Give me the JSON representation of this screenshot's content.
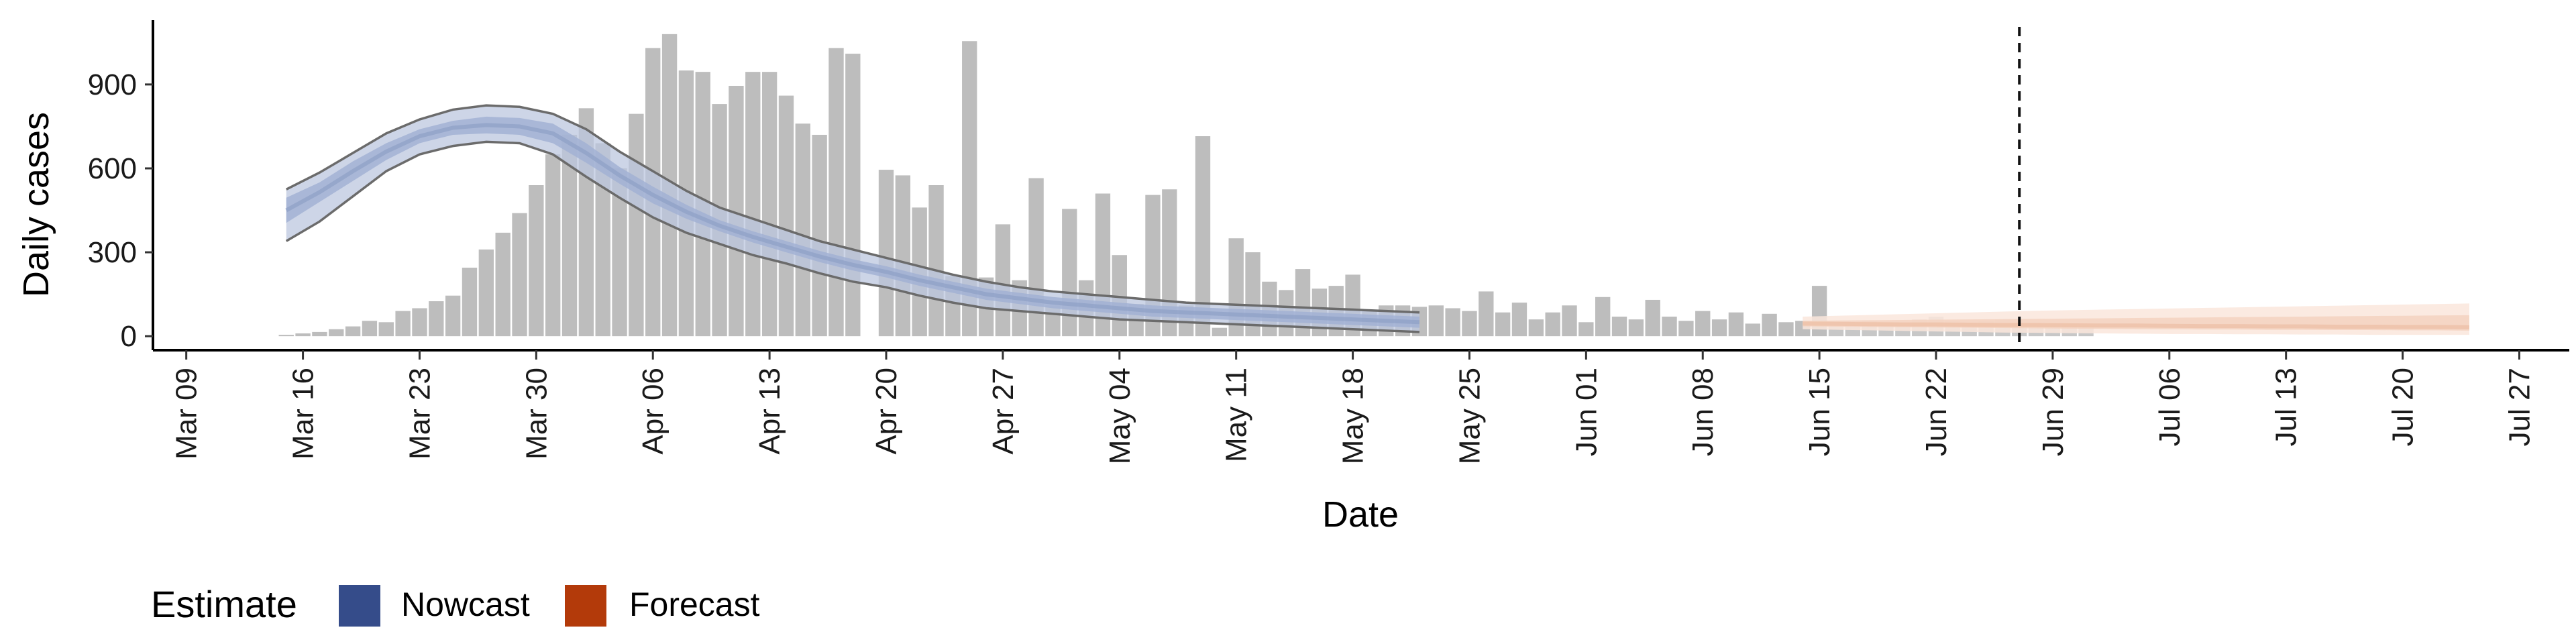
{
  "chart_data": {
    "type": "bar",
    "xlabel": "Date",
    "ylabel": "Daily cases",
    "yticks": [
      0,
      300,
      600,
      900
    ],
    "ylim": [
      -50,
      1130
    ],
    "xlim": [
      "2020-03-07",
      "2020-07-30"
    ],
    "xticks": [
      "2020-03-09",
      "2020-03-16",
      "2020-03-23",
      "2020-03-30",
      "2020-04-06",
      "2020-04-13",
      "2020-04-20",
      "2020-04-27",
      "2020-05-04",
      "2020-05-11",
      "2020-05-18",
      "2020-05-25",
      "2020-06-01",
      "2020-06-08",
      "2020-06-15",
      "2020-06-22",
      "2020-06-29",
      "2020-07-06",
      "2020-07-13",
      "2020-07-20",
      "2020-07-27"
    ],
    "xtick_labels": [
      "Mar 09",
      "Mar 16",
      "Mar 23",
      "Mar 30",
      "Apr 06",
      "Apr 13",
      "Apr 20",
      "Apr 27",
      "May 04",
      "May 11",
      "May 18",
      "May 25",
      "Jun 01",
      "Jun 08",
      "Jun 15",
      "Jun 22",
      "Jun 29",
      "Jul 06",
      "Jul 13",
      "Jul 20",
      "Jul 27"
    ],
    "reported_cases": {
      "start_date": "2020-03-15",
      "values": [
        5,
        10,
        15,
        25,
        35,
        55,
        50,
        90,
        100,
        125,
        145,
        245,
        310,
        370,
        440,
        540,
        650,
        720,
        815,
        690,
        600,
        795,
        1030,
        1080,
        950,
        945,
        830,
        895,
        945,
        945,
        860,
        760,
        720,
        1030,
        1010,
        0,
        595,
        575,
        460,
        540,
        215,
        1055,
        210,
        400,
        200,
        565,
        110,
        455,
        200,
        510,
        290,
        115,
        505,
        525,
        110,
        715,
        30,
        350,
        300,
        195,
        165,
        240,
        170,
        180,
        220,
        90,
        110,
        110,
        105,
        110,
        100,
        90,
        160,
        85,
        120,
        60,
        85,
        110,
        50,
        140,
        70,
        60,
        130,
        70,
        55,
        90,
        60,
        85,
        45,
        80,
        50,
        55,
        180
      ],
      "forecast_values": [
        35,
        45,
        55,
        50,
        45,
        60,
        70,
        55,
        45,
        55,
        60,
        50,
        45,
        45,
        45,
        40
      ]
    },
    "nowcast": {
      "start_date": "2020-03-15",
      "step_days": 2,
      "median": [
        450,
        515,
        590,
        660,
        715,
        745,
        755,
        750,
        725,
        655,
        575,
        505,
        445,
        395,
        355,
        320,
        285,
        255,
        230,
        200,
        175,
        150,
        135,
        120,
        110,
        100,
        90,
        85,
        80,
        75,
        70,
        65,
        60,
        55,
        50
      ],
      "inner": [
        [
          405,
          495
        ],
        [
          480,
          550
        ],
        [
          555,
          625
        ],
        [
          630,
          690
        ],
        [
          690,
          740
        ],
        [
          720,
          770
        ],
        [
          725,
          785
        ],
        [
          720,
          780
        ],
        [
          690,
          760
        ],
        [
          620,
          690
        ],
        [
          545,
          605
        ],
        [
          475,
          535
        ],
        [
          420,
          470
        ],
        [
          375,
          415
        ],
        [
          335,
          375
        ],
        [
          300,
          340
        ],
        [
          265,
          305
        ],
        [
          235,
          275
        ],
        [
          210,
          250
        ],
        [
          180,
          220
        ],
        [
          155,
          195
        ],
        [
          130,
          170
        ],
        [
          115,
          155
        ],
        [
          100,
          140
        ],
        [
          90,
          130
        ],
        [
          80,
          120
        ],
        [
          70,
          110
        ],
        [
          65,
          105
        ],
        [
          60,
          100
        ],
        [
          55,
          95
        ],
        [
          50,
          90
        ],
        [
          45,
          85
        ],
        [
          40,
          80
        ],
        [
          35,
          75
        ],
        [
          30,
          70
        ]
      ],
      "outer": [
        [
          340,
          525
        ],
        [
          410,
          585
        ],
        [
          500,
          655
        ],
        [
          590,
          725
        ],
        [
          650,
          775
        ],
        [
          680,
          810
        ],
        [
          695,
          825
        ],
        [
          690,
          820
        ],
        [
          650,
          795
        ],
        [
          570,
          740
        ],
        [
          495,
          660
        ],
        [
          425,
          590
        ],
        [
          370,
          520
        ],
        [
          330,
          460
        ],
        [
          290,
          420
        ],
        [
          260,
          380
        ],
        [
          225,
          340
        ],
        [
          195,
          310
        ],
        [
          175,
          280
        ],
        [
          145,
          250
        ],
        [
          120,
          220
        ],
        [
          100,
          195
        ],
        [
          90,
          175
        ],
        [
          80,
          160
        ],
        [
          70,
          150
        ],
        [
          60,
          140
        ],
        [
          55,
          130
        ],
        [
          50,
          120
        ],
        [
          45,
          115
        ],
        [
          40,
          110
        ],
        [
          35,
          105
        ],
        [
          30,
          100
        ],
        [
          25,
          95
        ],
        [
          20,
          90
        ],
        [
          15,
          85
        ]
      ]
    },
    "forecast": {
      "start_date": "2020-06-14",
      "step_days": 2,
      "median": [
        45,
        44,
        43,
        42,
        42,
        41,
        40,
        40,
        39,
        38,
        38,
        37,
        36,
        36,
        35,
        35,
        34,
        34,
        33,
        33,
        32
      ],
      "inner": [
        [
          35,
          55
        ],
        [
          34,
          56
        ],
        [
          33,
          57
        ],
        [
          32,
          58
        ],
        [
          31,
          59
        ],
        [
          30,
          60
        ],
        [
          29,
          61
        ],
        [
          28,
          62
        ],
        [
          27,
          63
        ],
        [
          26,
          64
        ],
        [
          25,
          65
        ],
        [
          25,
          66
        ],
        [
          24,
          67
        ],
        [
          24,
          68
        ],
        [
          23,
          69
        ],
        [
          23,
          70
        ],
        [
          22,
          71
        ],
        [
          22,
          72
        ],
        [
          21,
          73
        ],
        [
          21,
          74
        ],
        [
          20,
          75
        ]
      ],
      "outer": [
        [
          25,
          70
        ],
        [
          23,
          73
        ],
        [
          21,
          76
        ],
        [
          19,
          79
        ],
        [
          17,
          82
        ],
        [
          15,
          85
        ],
        [
          13,
          88
        ],
        [
          12,
          91
        ],
        [
          11,
          93
        ],
        [
          10,
          95
        ],
        [
          9,
          97
        ],
        [
          8,
          99
        ],
        [
          8,
          101
        ],
        [
          7,
          103
        ],
        [
          7,
          105
        ],
        [
          6,
          107
        ],
        [
          6,
          109
        ],
        [
          5,
          111
        ],
        [
          5,
          113
        ],
        [
          5,
          115
        ],
        [
          5,
          117
        ]
      ]
    },
    "vline_date": "2020-06-27",
    "legend": {
      "position": "bottom-left",
      "title": "Estimate",
      "items": [
        {
          "label": "Nowcast",
          "color": "#354c8a"
        },
        {
          "label": "Forecast",
          "color": "#b33a0a"
        }
      ]
    },
    "colors": {
      "bars": "#bdbdbd",
      "nowcast_band": "#bcc7df",
      "nowcast_inner": "#a2b1d3",
      "nowcast_lines": "#6b6b6b",
      "forecast_band": "#fae6dc",
      "forecast_inner": "#f3d2c0",
      "vline": "#111111"
    }
  }
}
